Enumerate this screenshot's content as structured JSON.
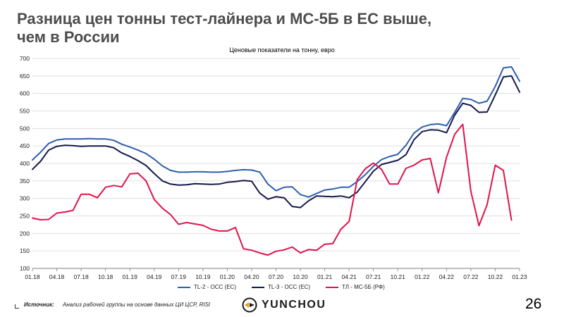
{
  "slide": {
    "title": "Разница цен тонны тест-лайнера и МС-5Б в ЕС выше,\nчем в России",
    "page_number": "26"
  },
  "source": {
    "label": "Источник:",
    "text": "Анализ рабочей группы на основе данных ЦИ ЦСР, RISI"
  },
  "logo": {
    "text": "YUNCHOU"
  },
  "chart_data": {
    "type": "line",
    "title": "Ценовые показатели на тонну, евро",
    "x_ticks": [
      "01.18",
      "04.18",
      "07.18",
      "10.18",
      "01.19",
      "04.19",
      "07.19",
      "10.19",
      "01.20",
      "04.20",
      "07.20",
      "10.20",
      "01.21",
      "04.21",
      "07.21",
      "10.21",
      "01.22",
      "04.22",
      "07.22",
      "10.22",
      "01.23"
    ],
    "y_ticks": [
      100,
      150,
      200,
      250,
      300,
      350,
      400,
      450,
      500,
      550,
      600,
      650,
      700
    ],
    "ylim": [
      100,
      700
    ],
    "grid": true,
    "legend_position": "bottom",
    "series": [
      {
        "name": "TL-2 - OCC (EC)",
        "color": "#2e5fae",
        "values": [
          410,
          432,
          457,
          467,
          470,
          470,
          470,
          471,
          470,
          470,
          466,
          455,
          447,
          438,
          428,
          412,
          393,
          380,
          375,
          375,
          376,
          376,
          375,
          375,
          377,
          380,
          382,
          381,
          375,
          341,
          322,
          332,
          333,
          311,
          304,
          314,
          324,
          327,
          332,
          332,
          348,
          368,
          392,
          411,
          420,
          426,
          452,
          487,
          504,
          511,
          513,
          508,
          546,
          586,
          583,
          572,
          578,
          620,
          673,
          676,
          635
        ]
      },
      {
        "name": "TL-3 - OCC (EC)",
        "color": "#141a4a",
        "values": [
          383,
          406,
          438,
          449,
          452,
          451,
          449,
          450,
          450,
          450,
          445,
          430,
          420,
          408,
          394,
          371,
          350,
          341,
          338,
          339,
          342,
          341,
          340,
          341,
          346,
          348,
          351,
          349,
          315,
          298,
          305,
          302,
          277,
          274,
          293,
          307,
          306,
          305,
          307,
          302,
          318,
          348,
          378,
          397,
          403,
          409,
          425,
          468,
          491,
          496,
          495,
          488,
          538,
          572,
          566,
          546,
          547,
          596,
          647,
          650,
          604
        ]
      },
      {
        "name": "ТЛ - МС-5Б (РФ)",
        "color": "#e0144c",
        "values": [
          244,
          239,
          240,
          258,
          261,
          266,
          312,
          312,
          302,
          332,
          337,
          333,
          370,
          372,
          350,
          297,
          272,
          254,
          226,
          231,
          227,
          223,
          212,
          207,
          207,
          217,
          156,
          152,
          144,
          138,
          149,
          153,
          161,
          144,
          154,
          152,
          169,
          171,
          212,
          234,
          354,
          385,
          401,
          383,
          341,
          341,
          386,
          395,
          410,
          414,
          316,
          418,
          483,
          512,
          320,
          222,
          282,
          395,
          380,
          238
        ]
      }
    ]
  }
}
